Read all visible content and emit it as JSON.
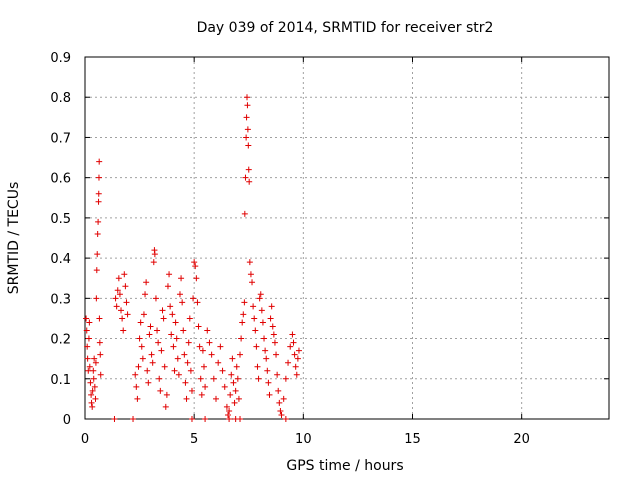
{
  "chart_data": {
    "type": "scatter",
    "title": "Day 039 of 2014, SRMTID for receiver str2",
    "xlabel": "GPS time / hours",
    "ylabel": "SRMTID / TECUs",
    "xlim": [
      0,
      24
    ],
    "ylim": [
      0,
      0.9
    ],
    "xticks": [
      0,
      5,
      10,
      15,
      20
    ],
    "yticks": [
      0,
      0.1,
      0.2,
      0.3,
      0.4,
      0.5,
      0.6,
      0.7,
      0.8,
      0.9
    ],
    "xtick_labels": [
      "0",
      "5",
      "10",
      "15",
      "20"
    ],
    "ytick_labels": [
      "0",
      "0.1",
      "0.2",
      "0.3",
      "0.4",
      "0.5",
      "0.6",
      "0.7",
      "0.8",
      "0.9"
    ],
    "grid": true,
    "marker": "+",
    "color": "#e00000",
    "series": [
      {
        "name": "SRMTID",
        "points": [
          [
            0.05,
            0.25
          ],
          [
            0.08,
            0.22
          ],
          [
            0.1,
            0.18
          ],
          [
            0.12,
            0.15
          ],
          [
            0.15,
            0.12
          ],
          [
            0.18,
            0.2
          ],
          [
            0.2,
            0.24
          ],
          [
            0.22,
            0.13
          ],
          [
            0.25,
            0.09
          ],
          [
            0.28,
            0.06
          ],
          [
            0.3,
            0.04
          ],
          [
            0.33,
            0.03
          ],
          [
            0.35,
            0.07
          ],
          [
            0.38,
            0.12
          ],
          [
            0.4,
            0.1
          ],
          [
            0.42,
            0.15
          ],
          [
            0.45,
            0.08
          ],
          [
            0.48,
            0.05
          ],
          [
            0.5,
            0.14
          ],
          [
            0.52,
            0.3
          ],
          [
            0.54,
            0.37
          ],
          [
            0.56,
            0.41
          ],
          [
            0.58,
            0.46
          ],
          [
            0.6,
            0.49
          ],
          [
            0.62,
            0.54
          ],
          [
            0.63,
            0.56
          ],
          [
            0.64,
            0.6
          ],
          [
            0.65,
            0.64
          ],
          [
            0.66,
            0.25
          ],
          [
            0.68,
            0.19
          ],
          [
            0.7,
            0.16
          ],
          [
            0.72,
            0.11
          ],
          [
            1.4,
            0.3
          ],
          [
            1.45,
            0.28
          ],
          [
            1.5,
            0.32
          ],
          [
            1.55,
            0.35
          ],
          [
            1.6,
            0.31
          ],
          [
            1.65,
            0.27
          ],
          [
            1.7,
            0.25
          ],
          [
            1.75,
            0.22
          ],
          [
            1.8,
            0.36
          ],
          [
            1.85,
            0.33
          ],
          [
            1.9,
            0.29
          ],
          [
            1.95,
            0.26
          ],
          [
            2.3,
            0.11
          ],
          [
            2.35,
            0.08
          ],
          [
            2.4,
            0.05
          ],
          [
            2.45,
            0.13
          ],
          [
            2.5,
            0.2
          ],
          [
            2.55,
            0.24
          ],
          [
            2.6,
            0.18
          ],
          [
            2.65,
            0.15
          ],
          [
            2.7,
            0.26
          ],
          [
            2.75,
            0.31
          ],
          [
            2.8,
            0.34
          ],
          [
            2.85,
            0.12
          ],
          [
            2.9,
            0.09
          ],
          [
            2.95,
            0.21
          ],
          [
            3.0,
            0.23
          ],
          [
            3.05,
            0.16
          ],
          [
            3.1,
            0.14
          ],
          [
            3.15,
            0.39
          ],
          [
            3.18,
            0.42
          ],
          [
            3.2,
            0.41
          ],
          [
            3.25,
            0.3
          ],
          [
            3.3,
            0.22
          ],
          [
            3.35,
            0.19
          ],
          [
            3.4,
            0.1
          ],
          [
            3.45,
            0.07
          ],
          [
            3.5,
            0.17
          ],
          [
            3.55,
            0.27
          ],
          [
            3.6,
            0.25
          ],
          [
            3.65,
            0.13
          ],
          [
            3.7,
            0.03
          ],
          [
            3.75,
            0.06
          ],
          [
            3.8,
            0.33
          ],
          [
            3.85,
            0.36
          ],
          [
            3.9,
            0.28
          ],
          [
            3.95,
            0.21
          ],
          [
            4.0,
            0.26
          ],
          [
            4.05,
            0.18
          ],
          [
            4.1,
            0.12
          ],
          [
            4.15,
            0.24
          ],
          [
            4.2,
            0.2
          ],
          [
            4.25,
            0.15
          ],
          [
            4.3,
            0.11
          ],
          [
            4.35,
            0.31
          ],
          [
            4.4,
            0.35
          ],
          [
            4.45,
            0.29
          ],
          [
            4.5,
            0.22
          ],
          [
            4.55,
            0.16
          ],
          [
            4.6,
            0.09
          ],
          [
            4.65,
            0.05
          ],
          [
            4.7,
            0.14
          ],
          [
            4.75,
            0.19
          ],
          [
            4.8,
            0.25
          ],
          [
            4.85,
            0.12
          ],
          [
            4.9,
            0.07
          ],
          [
            4.95,
            0.3
          ],
          [
            5.0,
            0.39
          ],
          [
            5.05,
            0.38
          ],
          [
            5.1,
            0.35
          ],
          [
            5.15,
            0.29
          ],
          [
            5.2,
            0.23
          ],
          [
            5.25,
            0.18
          ],
          [
            5.3,
            0.1
          ],
          [
            5.35,
            0.06
          ],
          [
            5.4,
            0.17
          ],
          [
            5.45,
            0.13
          ],
          [
            5.5,
            0.08
          ],
          [
            5.6,
            0.22
          ],
          [
            5.7,
            0.19
          ],
          [
            5.8,
            0.16
          ],
          [
            5.9,
            0.1
          ],
          [
            6.0,
            0.05
          ],
          [
            6.1,
            0.14
          ],
          [
            6.2,
            0.18
          ],
          [
            6.3,
            0.12
          ],
          [
            6.4,
            0.08
          ],
          [
            6.5,
            0.03
          ],
          [
            6.55,
            0.01
          ],
          [
            6.6,
            0.02
          ],
          [
            6.65,
            0.06
          ],
          [
            6.7,
            0.11
          ],
          [
            6.75,
            0.15
          ],
          [
            6.8,
            0.09
          ],
          [
            6.85,
            0.04
          ],
          [
            6.9,
            0.07
          ],
          [
            6.95,
            0.13
          ],
          [
            7.0,
            0.1
          ],
          [
            7.05,
            0.05
          ],
          [
            7.1,
            0.16
          ],
          [
            7.15,
            0.2
          ],
          [
            7.2,
            0.24
          ],
          [
            7.25,
            0.26
          ],
          [
            7.3,
            0.29
          ],
          [
            7.32,
            0.51
          ],
          [
            7.35,
            0.6
          ],
          [
            7.38,
            0.7
          ],
          [
            7.4,
            0.75
          ],
          [
            7.42,
            0.8
          ],
          [
            7.44,
            0.78
          ],
          [
            7.46,
            0.72
          ],
          [
            7.48,
            0.68
          ],
          [
            7.5,
            0.62
          ],
          [
            7.52,
            0.59
          ],
          [
            7.55,
            0.39
          ],
          [
            7.6,
            0.36
          ],
          [
            7.65,
            0.34
          ],
          [
            7.7,
            0.28
          ],
          [
            7.75,
            0.25
          ],
          [
            7.8,
            0.22
          ],
          [
            7.85,
            0.18
          ],
          [
            7.9,
            0.13
          ],
          [
            7.95,
            0.1
          ],
          [
            8.0,
            0.3
          ],
          [
            8.05,
            0.31
          ],
          [
            8.1,
            0.27
          ],
          [
            8.15,
            0.24
          ],
          [
            8.2,
            0.2
          ],
          [
            8.25,
            0.17
          ],
          [
            8.3,
            0.15
          ],
          [
            8.35,
            0.12
          ],
          [
            8.4,
            0.09
          ],
          [
            8.45,
            0.06
          ],
          [
            8.5,
            0.25
          ],
          [
            8.55,
            0.28
          ],
          [
            8.6,
            0.23
          ],
          [
            8.65,
            0.21
          ],
          [
            8.7,
            0.19
          ],
          [
            8.75,
            0.16
          ],
          [
            8.8,
            0.11
          ],
          [
            8.85,
            0.07
          ],
          [
            8.9,
            0.04
          ],
          [
            8.95,
            0.02
          ],
          [
            9.0,
            0.01
          ],
          [
            9.1,
            0.05
          ],
          [
            9.2,
            0.1
          ],
          [
            9.3,
            0.14
          ],
          [
            9.4,
            0.18
          ],
          [
            9.5,
            0.21
          ],
          [
            9.55,
            0.19
          ],
          [
            9.6,
            0.16
          ],
          [
            9.65,
            0.13
          ],
          [
            9.7,
            0.11
          ],
          [
            9.75,
            0.15
          ],
          [
            9.8,
            0.17
          ],
          [
            1.35,
            0.0
          ],
          [
            2.2,
            0.0
          ],
          [
            4.9,
            0.0
          ],
          [
            5.5,
            0.0
          ],
          [
            6.6,
            0.0
          ],
          [
            6.9,
            0.0
          ],
          [
            7.1,
            0.0
          ],
          [
            9.2,
            0.0
          ]
        ]
      }
    ]
  }
}
